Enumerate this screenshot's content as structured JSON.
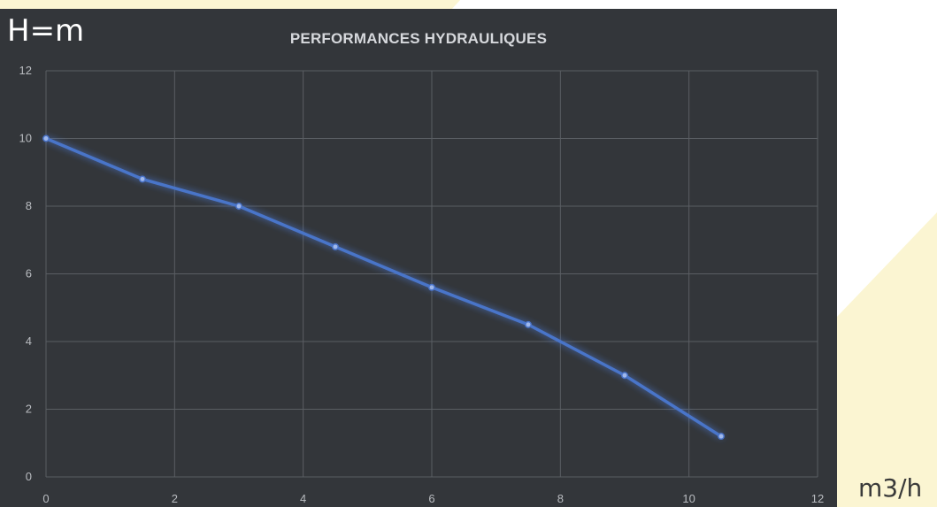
{
  "chart_data": {
    "type": "line",
    "title": "PERFORMANCES HYDRAULIQUES",
    "ylabel": "H=m",
    "xlabel": "m3/h",
    "xlim": [
      0,
      12
    ],
    "ylim": [
      0,
      12
    ],
    "x_ticks": [
      "0",
      "2",
      "4",
      "6",
      "8",
      "10",
      "12"
    ],
    "y_ticks": [
      "0",
      "2",
      "4",
      "6",
      "8",
      "10",
      "12"
    ],
    "grid": true,
    "series": [
      {
        "x": [
          0,
          1.5,
          3,
          4.5,
          6,
          7.5,
          9,
          10.5
        ],
        "y": [
          10,
          8.8,
          8,
          6.8,
          5.6,
          4.5,
          3.0,
          1.2
        ]
      }
    ]
  },
  "colors": {
    "line": "#4a74c9",
    "panel": "#33363a",
    "grid": "#5a5e63",
    "accent_background": "#fbf5d2"
  }
}
